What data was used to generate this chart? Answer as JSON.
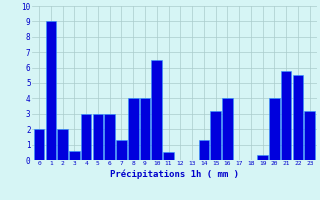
{
  "categories": [
    0,
    1,
    2,
    3,
    4,
    5,
    6,
    7,
    8,
    9,
    10,
    11,
    12,
    13,
    14,
    15,
    16,
    17,
    18,
    19,
    20,
    21,
    22,
    23
  ],
  "values": [
    2.0,
    9.0,
    2.0,
    0.6,
    3.0,
    3.0,
    3.0,
    1.3,
    4.0,
    4.0,
    6.5,
    0.5,
    0.0,
    0.0,
    1.3,
    3.2,
    4.0,
    0.0,
    0.0,
    0.3,
    4.0,
    5.8,
    5.5,
    3.2
  ],
  "bar_color": "#0000dd",
  "bar_edge_color": "#3399ff",
  "background_color": "#d6f5f5",
  "grid_color": "#aacccc",
  "xlabel": "Précipitations 1h ( mm )",
  "xlabel_color": "#0000cc",
  "tick_color": "#0000cc",
  "ylim": [
    0,
    10
  ],
  "yticks": [
    0,
    1,
    2,
    3,
    4,
    5,
    6,
    7,
    8,
    9,
    10
  ]
}
